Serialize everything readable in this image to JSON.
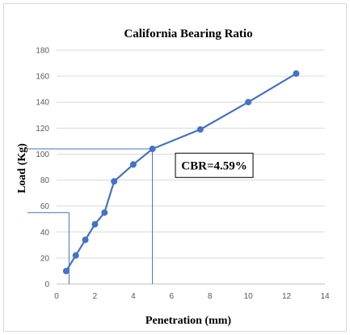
{
  "chart_data": {
    "type": "scatter",
    "title": "California Bearing Ratio",
    "xlabel": "Penetration (mm)",
    "ylabel": "Load (Kg)",
    "xlim": [
      0,
      14
    ],
    "ylim": [
      0,
      180
    ],
    "xticks": [
      0,
      2,
      4,
      6,
      8,
      10,
      12,
      14
    ],
    "yticks": [
      0,
      20,
      40,
      60,
      80,
      100,
      120,
      140,
      160,
      180
    ],
    "grid": "horizontal",
    "series": [
      {
        "color": "#4472c4",
        "x": [
          0.5,
          1.0,
          1.5,
          2.0,
          2.5,
          3.0,
          4.0,
          5.0,
          7.5,
          10.0,
          12.5
        ],
        "y": [
          10,
          22,
          34,
          46,
          55,
          79,
          92,
          104,
          119,
          140,
          162
        ]
      }
    ],
    "reference_lines": [
      {
        "x": 5.0,
        "y": 104
      },
      {
        "x": 0.65,
        "y": 55
      }
    ],
    "reference_color": "#4472c4",
    "annotation": {
      "text": "CBR=4.59%",
      "x": 6.2,
      "y": 92
    }
  }
}
